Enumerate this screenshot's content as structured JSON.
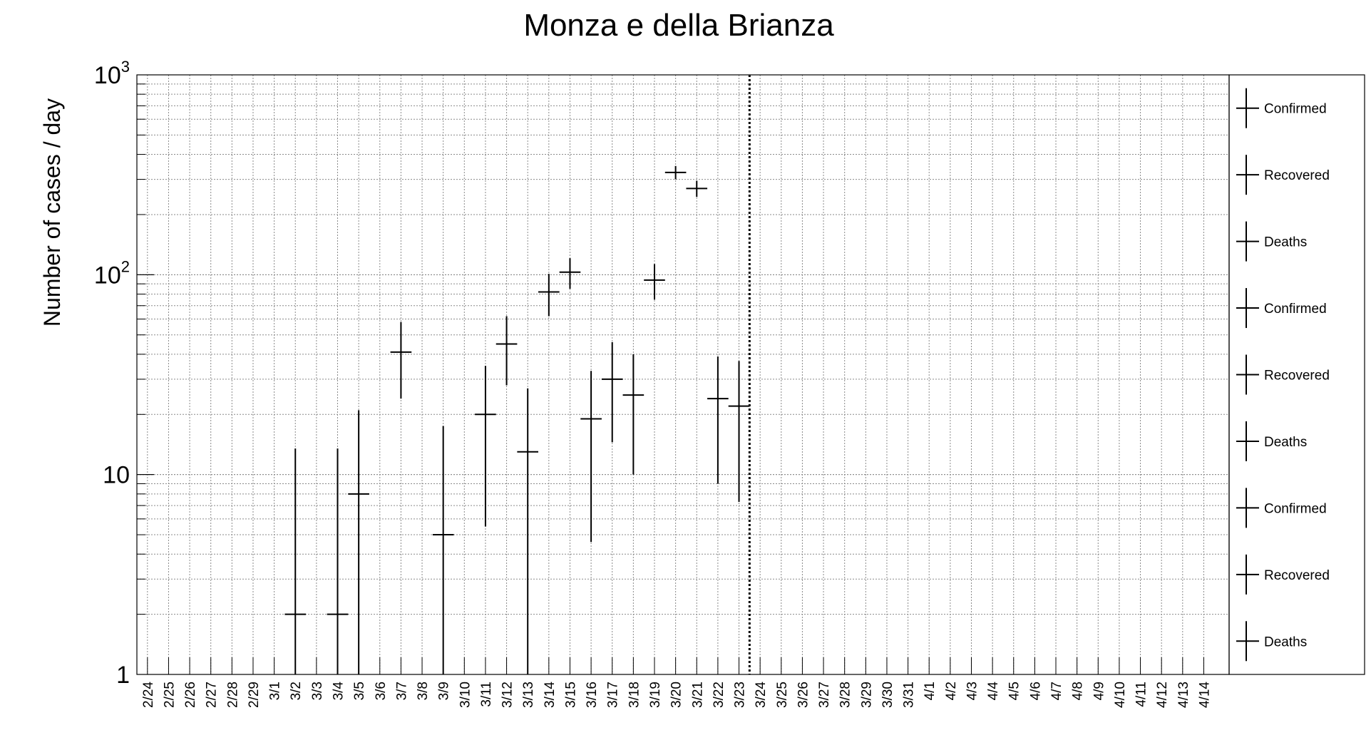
{
  "chart_data": {
    "type": "scatter",
    "title": "Monza e della Brianza",
    "ylabel": "Number of cases / day",
    "xlabel": "",
    "yscale": "log",
    "ylim": [
      1,
      1000
    ],
    "grid": true,
    "y_ticks": [
      {
        "base": "1",
        "exp": ""
      },
      {
        "base": "10",
        "exp": ""
      },
      {
        "base": "10",
        "exp": "2"
      },
      {
        "base": "10",
        "exp": "3"
      }
    ],
    "categories": [
      "2/24",
      "2/25",
      "2/26",
      "2/27",
      "2/28",
      "2/29",
      "3/1",
      "3/2",
      "3/3",
      "3/4",
      "3/5",
      "3/6",
      "3/7",
      "3/8",
      "3/9",
      "3/10",
      "3/11",
      "3/12",
      "3/13",
      "3/14",
      "3/15",
      "3/16",
      "3/17",
      "3/18",
      "3/19",
      "3/20",
      "3/21",
      "3/22",
      "3/23",
      "3/24",
      "3/25",
      "3/26",
      "3/27",
      "3/28",
      "3/29",
      "3/30",
      "3/31",
      "4/1",
      "4/2",
      "4/3",
      "4/4",
      "4/5",
      "4/6",
      "4/7",
      "4/8",
      "4/9",
      "4/10",
      "4/11",
      "4/12",
      "4/13",
      "4/14"
    ],
    "vertical_marker": "3/23",
    "series": [
      {
        "name": "Confirmed",
        "points": [
          {
            "x": "3/2",
            "y": 2,
            "ylo": 1,
            "yhi": 13.5
          },
          {
            "x": "3/4",
            "y": 2,
            "ylo": 1,
            "yhi": 13.5
          },
          {
            "x": "3/5",
            "y": 8,
            "ylo": 1,
            "yhi": 21
          },
          {
            "x": "3/7",
            "y": 41,
            "ylo": 24,
            "yhi": 58
          },
          {
            "x": "3/9",
            "y": 5,
            "ylo": 1,
            "yhi": 17.5
          },
          {
            "x": "3/11",
            "y": 20,
            "ylo": 5.5,
            "yhi": 35
          },
          {
            "x": "3/12",
            "y": 45,
            "ylo": 28,
            "yhi": 62
          },
          {
            "x": "3/13",
            "y": 13,
            "ylo": 1,
            "yhi": 27
          },
          {
            "x": "3/14",
            "y": 82,
            "ylo": 62,
            "yhi": 101
          },
          {
            "x": "3/15",
            "y": 103,
            "ylo": 85,
            "yhi": 121
          },
          {
            "x": "3/16",
            "y": 19,
            "ylo": 4.6,
            "yhi": 33
          },
          {
            "x": "3/17",
            "y": 30,
            "ylo": 14.5,
            "yhi": 46
          },
          {
            "x": "3/18",
            "y": 25,
            "ylo": 10,
            "yhi": 40
          },
          {
            "x": "3/19",
            "y": 94,
            "ylo": 75,
            "yhi": 113
          },
          {
            "x": "3/20",
            "y": 325,
            "ylo": 300,
            "yhi": 350
          },
          {
            "x": "3/21",
            "y": 270,
            "ylo": 245,
            "yhi": 295
          },
          {
            "x": "3/22",
            "y": 24,
            "ylo": 9,
            "yhi": 39
          },
          {
            "x": "3/23",
            "y": 22,
            "ylo": 7.3,
            "yhi": 37
          }
        ]
      }
    ],
    "legend": {
      "placement": "right",
      "entries": [
        "Confirmed",
        "Recovered",
        "Deaths",
        "Confirmed",
        "Recovered",
        "Deaths",
        "Confirmed",
        "Recovered",
        "Deaths"
      ]
    }
  }
}
